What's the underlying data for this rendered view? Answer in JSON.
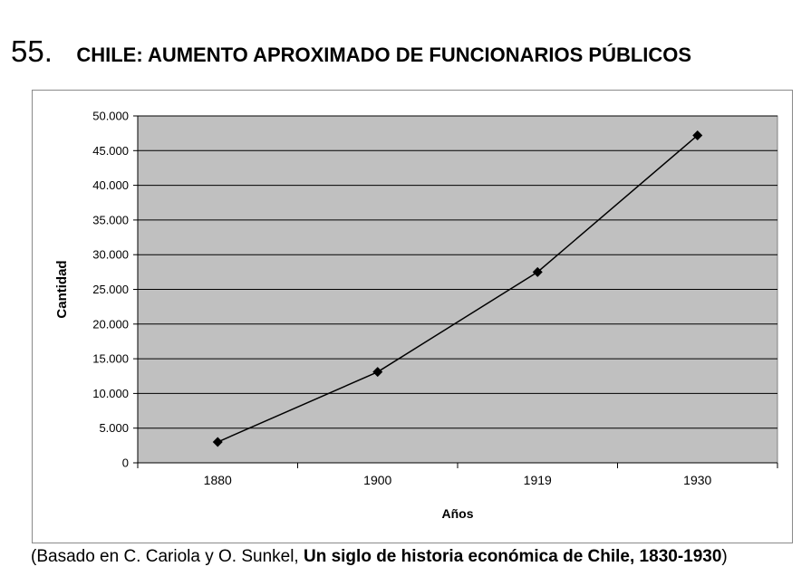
{
  "figure": {
    "number": "55.",
    "title": "CHILE: AUMENTO APROXIMADO DE FUNCIONARIOS PÚBLICOS"
  },
  "source": {
    "prefix": "(Basado en C. Cariola y O. Sunkel, ",
    "book_title": "Un siglo de historia económica de Chile, 1830-1930",
    "suffix": ")"
  },
  "colors": {
    "plot_background": "#c0c0c0",
    "gridline": "#000000",
    "series_line": "#000000",
    "marker": "#000000"
  },
  "chart_data": {
    "type": "line",
    "categories": [
      "1880",
      "1900",
      "1919",
      "1930"
    ],
    "series": [
      {
        "values": [
          3000,
          13100,
          27500,
          47200
        ],
        "marker": "diamond"
      }
    ],
    "title": "",
    "xlabel": "Años",
    "ylabel": "Cantidad",
    "ylim": [
      0,
      50000
    ],
    "ytick_step": 5000,
    "ytick_labels": [
      "0",
      "5.000",
      "10.000",
      "15.000",
      "20.000",
      "25.000",
      "30.000",
      "35.000",
      "40.000",
      "45.000",
      "50.000"
    ],
    "grid": "horizontal",
    "legend": "none"
  }
}
